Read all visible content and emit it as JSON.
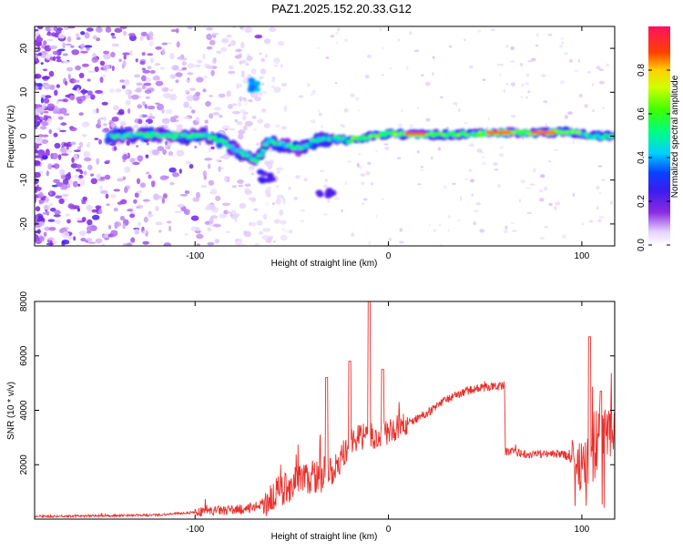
{
  "title": "PAZ1.2025.152.20.33.G12",
  "chart_data": [
    {
      "type": "heatmap",
      "xlabel": "Height of straight line (km)",
      "ylabel": "Frequency (Hz)",
      "xlim": [
        -183,
        117
      ],
      "ylim": [
        -25,
        25
      ],
      "xticks": [
        -100,
        0,
        100
      ],
      "yticks": [
        20,
        10,
        0,
        -10,
        -20
      ],
      "xtick_labels": [
        "-100",
        "0",
        "100"
      ],
      "ytick_labels": [
        "20",
        "10",
        "0",
        "-10",
        "-20"
      ],
      "colorbar": {
        "label": "Normalized spectral amplitude",
        "range": [
          0,
          1
        ],
        "ticks": [
          0.0,
          0.2,
          0.4,
          0.6,
          0.8
        ],
        "tick_labels": [
          "0.0",
          "0.2",
          "0.4",
          "0.6",
          "0.8"
        ]
      },
      "main_signal_path": [
        {
          "x": -140,
          "y": 0.0
        },
        {
          "x": -125,
          "y": 0.3
        },
        {
          "x": -110,
          "y": 0.0
        },
        {
          "x": -95,
          "y": 0.2
        },
        {
          "x": -85,
          "y": -1.5
        },
        {
          "x": -75,
          "y": -4.0
        },
        {
          "x": -68,
          "y": -5.5
        },
        {
          "x": -62,
          "y": -1.0
        },
        {
          "x": -55,
          "y": -2.0
        },
        {
          "x": -45,
          "y": -3.0
        },
        {
          "x": -38,
          "y": -1.0
        },
        {
          "x": -30,
          "y": -0.5
        },
        {
          "x": -20,
          "y": -1.0
        },
        {
          "x": -10,
          "y": 0.0
        },
        {
          "x": 0,
          "y": 0.5
        },
        {
          "x": 20,
          "y": 0.3
        },
        {
          "x": 40,
          "y": 0.4
        },
        {
          "x": 60,
          "y": 0.8
        },
        {
          "x": 70,
          "y": 0.8
        },
        {
          "x": 80,
          "y": 0.8
        },
        {
          "x": 95,
          "y": 1.0
        },
        {
          "x": 105,
          "y": 0.0
        },
        {
          "x": 117,
          "y": 0.0
        }
      ],
      "high_amplitude_segments": [
        {
          "x_start": 10,
          "x_end": 18,
          "y": 0.5
        },
        {
          "x_start": 52,
          "x_end": 62,
          "y": 0.8
        },
        {
          "x_start": 75,
          "x_end": 85,
          "y": 0.8
        }
      ],
      "side_features": [
        {
          "x": -72,
          "y": 11.5,
          "label": ""
        },
        {
          "x": -32,
          "y": -12.5,
          "label": ""
        },
        {
          "x": -63,
          "y": -9.0,
          "label": ""
        }
      ]
    },
    {
      "type": "line",
      "xlabel": "Height of straight line (km)",
      "ylabel": "SNR (10 * v/v)",
      "xlim": [
        -183,
        117
      ],
      "ylim": [
        0,
        8000
      ],
      "xticks": [
        -100,
        0,
        100
      ],
      "yticks": [
        2000,
        4000,
        6000,
        8000
      ],
      "xtick_labels": [
        "-100",
        "0",
        "100"
      ],
      "ytick_labels": [
        "2000",
        "4000",
        "6000",
        "8000"
      ],
      "color": "#e8302c",
      "envelope": [
        {
          "x": -183,
          "y": 100
        },
        {
          "x": -150,
          "y": 120
        },
        {
          "x": -120,
          "y": 150
        },
        {
          "x": -100,
          "y": 250
        },
        {
          "x": -90,
          "y": 300
        },
        {
          "x": -80,
          "y": 350
        },
        {
          "x": -70,
          "y": 400
        },
        {
          "x": -60,
          "y": 800
        },
        {
          "x": -50,
          "y": 1300
        },
        {
          "x": -40,
          "y": 1500
        },
        {
          "x": -30,
          "y": 1700
        },
        {
          "x": -25,
          "y": 2000
        },
        {
          "x": -20,
          "y": 2800
        },
        {
          "x": -15,
          "y": 3000
        },
        {
          "x": -10,
          "y": 3100
        },
        {
          "x": -5,
          "y": 2900
        },
        {
          "x": 0,
          "y": 3200
        },
        {
          "x": 10,
          "y": 3500
        },
        {
          "x": 20,
          "y": 3900
        },
        {
          "x": 30,
          "y": 4400
        },
        {
          "x": 40,
          "y": 4700
        },
        {
          "x": 50,
          "y": 4850
        },
        {
          "x": 60,
          "y": 4900
        },
        {
          "x": 60.5,
          "y": 2500
        },
        {
          "x": 70,
          "y": 2400
        },
        {
          "x": 80,
          "y": 2400
        },
        {
          "x": 90,
          "y": 2400
        },
        {
          "x": 95,
          "y": 2200
        },
        {
          "x": 100,
          "y": 2000
        },
        {
          "x": 105,
          "y": 2000
        },
        {
          "x": 110,
          "y": 3000
        },
        {
          "x": 117,
          "y": 3400
        }
      ],
      "peaks": [
        {
          "x": -32,
          "y": 5200
        },
        {
          "x": -20,
          "y": 5800
        },
        {
          "x": -10,
          "y": 8000
        },
        {
          "x": -3,
          "y": 5500
        },
        {
          "x": 104,
          "y": 6700
        },
        {
          "x": 110,
          "y": 4700
        }
      ]
    }
  ]
}
